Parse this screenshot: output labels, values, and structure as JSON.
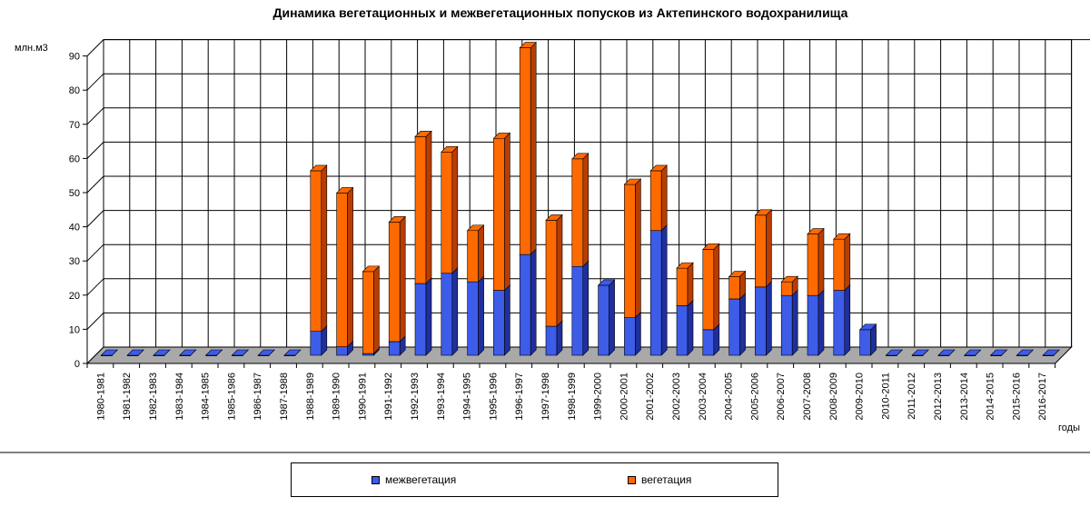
{
  "chart_data": {
    "type": "bar",
    "stacked": true,
    "title": "Динамика вегетационных и межвегетационных попусков из Актепинского водохранилища",
    "ylabel": "млн.м3",
    "xlabel": "годы",
    "ylim": [
      0,
      90
    ],
    "yticks": [
      0,
      10,
      20,
      30,
      40,
      50,
      60,
      70,
      80,
      90
    ],
    "grid": true,
    "legend_position": "bottom",
    "categories": [
      "1980-1981",
      "1981-1982",
      "1982-1983",
      "1983-1984",
      "1984-1985",
      "1985-1986",
      "1986-1987",
      "1987-1988",
      "1988-1989",
      "1989-1990",
      "1990-1991",
      "1991-1992",
      "1992-1993",
      "1993-1994",
      "1994-1995",
      "1995-1996",
      "1996-1997",
      "1997-1998",
      "1998-1999",
      "1999-2000",
      "2000-2001",
      "2001-2002",
      "2002-2003",
      "2003-2004",
      "2004-2005",
      "2005-2006",
      "2006-2007",
      "2007-2008",
      "2008-2009",
      "2009-2010",
      "2010-2011",
      "2011-2012",
      "2012-2013",
      "2013-2014",
      "2014-2015",
      "2015-2016",
      "2016-2017"
    ],
    "series": [
      {
        "name": "межвегетация",
        "color": "#3d5ce8",
        "side_color": "#1f2f9c",
        "values": [
          0,
          0,
          0,
          0,
          0,
          0,
          0,
          0,
          7,
          2.5,
          0.5,
          4,
          21,
          24,
          21.5,
          19,
          29.5,
          8.5,
          26,
          20.5,
          11,
          36.5,
          14.5,
          7.5,
          16.5,
          20,
          17.5,
          17.5,
          19,
          7.5,
          0,
          0,
          0,
          0,
          0,
          0,
          0
        ]
      },
      {
        "name": "вегетация",
        "color": "#ff6a00",
        "side_color": "#b83d00",
        "values": [
          0,
          0,
          0,
          0,
          0,
          0,
          0,
          0,
          47,
          45,
          24,
          35,
          43,
          35.5,
          15,
          44.5,
          60.5,
          31,
          31.5,
          0,
          39,
          17.5,
          11,
          23.5,
          6.5,
          21,
          4,
          18,
          15,
          0,
          0,
          0,
          0,
          0,
          0,
          0,
          0
        ]
      }
    ]
  },
  "legend": {
    "item1_label": "межвегетация",
    "item2_label": "вегетация"
  },
  "colors": {
    "background": "#ffffff",
    "grid": "#000000",
    "floor": "#a9a9a9",
    "wall": "#ffffff"
  }
}
